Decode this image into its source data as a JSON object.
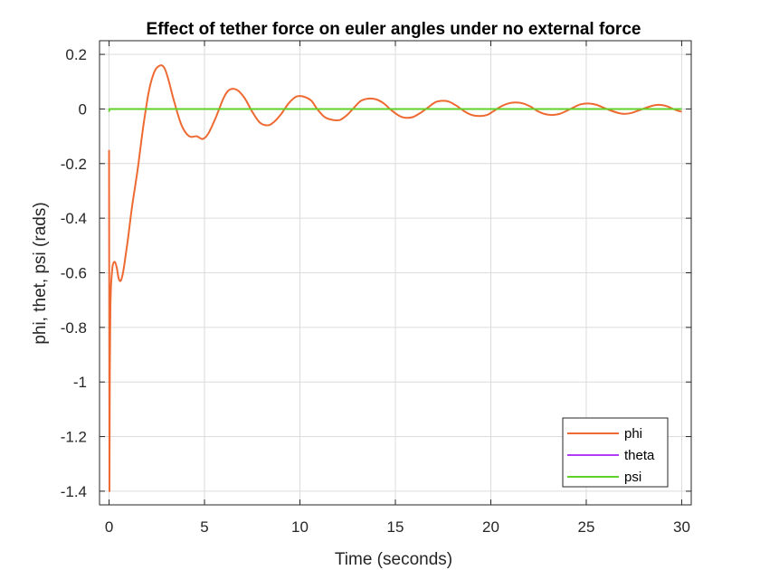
{
  "chart_data": {
    "type": "line",
    "title": "Effect of tether force on euler angles under no external force",
    "xlabel": "Time (seconds)",
    "ylabel": "phi, thet, psi (rads)",
    "xlim": [
      -0.5,
      30.5
    ],
    "ylim": [
      -1.45,
      0.25
    ],
    "xticks": [
      0,
      5,
      10,
      15,
      20,
      25,
      30
    ],
    "xtick_labels": [
      "0",
      "5",
      "10",
      "15",
      "20",
      "25",
      "30"
    ],
    "yticks": [
      0.2,
      0,
      -0.2,
      -0.4,
      -0.6,
      -0.8,
      -1,
      -1.2,
      -1.4
    ],
    "ytick_labels": [
      "0.2",
      "0",
      "-0.2",
      "-0.4",
      "-0.6",
      "-0.8",
      "-1",
      "-1.2",
      "-1.4"
    ],
    "grid": true,
    "legend_position": "bottom-right",
    "series": [
      {
        "name": "phi",
        "color": "#EE6A32",
        "x": [
          0,
          0.02,
          0.04,
          0.07,
          0.1,
          0.15,
          0.2,
          0.3,
          0.4,
          0.5,
          0.6,
          0.7,
          0.8,
          1.0,
          1.2,
          1.5,
          1.8,
          2.1,
          2.4,
          2.7,
          2.9,
          3.1,
          3.4,
          3.8,
          4.2,
          4.6,
          4.9,
          5.2,
          5.6,
          6.0,
          6.3,
          6.7,
          7.1,
          7.5,
          7.9,
          8.3,
          8.6,
          9.0,
          9.4,
          9.8,
          10.2,
          10.6,
          10.9,
          11.3,
          11.7,
          12.1,
          12.5,
          12.9,
          13.2,
          13.6,
          14.0,
          14.4,
          14.8,
          15.2,
          15.5,
          15.9,
          16.3,
          16.7,
          17.1,
          17.5,
          17.8,
          18.2,
          18.6,
          19.0,
          19.4,
          19.8,
          20.1,
          20.5,
          20.9,
          21.3,
          21.7,
          22.1,
          22.4,
          22.8,
          23.2,
          23.6,
          24.0,
          24.4,
          24.7,
          25.1,
          25.5,
          25.9,
          26.3,
          26.7,
          27.0,
          27.4,
          27.8,
          28.2,
          28.6,
          29.0,
          29.3,
          29.7,
          30.0
        ],
        "y": [
          -0.15,
          -1.4,
          -0.95,
          -0.72,
          -0.65,
          -0.6,
          -0.57,
          -0.56,
          -0.58,
          -0.62,
          -0.63,
          -0.61,
          -0.57,
          -0.47,
          -0.36,
          -0.22,
          -0.06,
          0.07,
          0.14,
          0.16,
          0.15,
          0.11,
          0.03,
          -0.06,
          -0.1,
          -0.1,
          -0.11,
          -0.09,
          -0.03,
          0.04,
          0.07,
          0.07,
          0.04,
          -0.01,
          -0.05,
          -0.06,
          -0.05,
          -0.02,
          0.02,
          0.045,
          0.045,
          0.03,
          0.0,
          -0.03,
          -0.04,
          -0.04,
          -0.02,
          0.01,
          0.03,
          0.038,
          0.035,
          0.02,
          -0.005,
          -0.025,
          -0.032,
          -0.03,
          -0.015,
          0.005,
          0.025,
          0.03,
          0.027,
          0.012,
          -0.008,
          -0.022,
          -0.026,
          -0.022,
          -0.01,
          0.008,
          0.02,
          0.024,
          0.02,
          0.008,
          -0.006,
          -0.018,
          -0.022,
          -0.018,
          -0.006,
          0.008,
          0.017,
          0.02,
          0.016,
          0.005,
          -0.006,
          -0.015,
          -0.018,
          -0.014,
          -0.004,
          0.006,
          0.014,
          0.014,
          0.008,
          -0.004,
          -0.01
        ]
      },
      {
        "name": "theta",
        "color": "#B23CF5",
        "x": [
          0,
          30
        ],
        "y": [
          0,
          0
        ]
      },
      {
        "name": "psi",
        "color": "#5FD22A",
        "x": [
          0,
          0.02,
          30
        ],
        "y": [
          -0.01,
          0,
          0
        ]
      }
    ]
  }
}
